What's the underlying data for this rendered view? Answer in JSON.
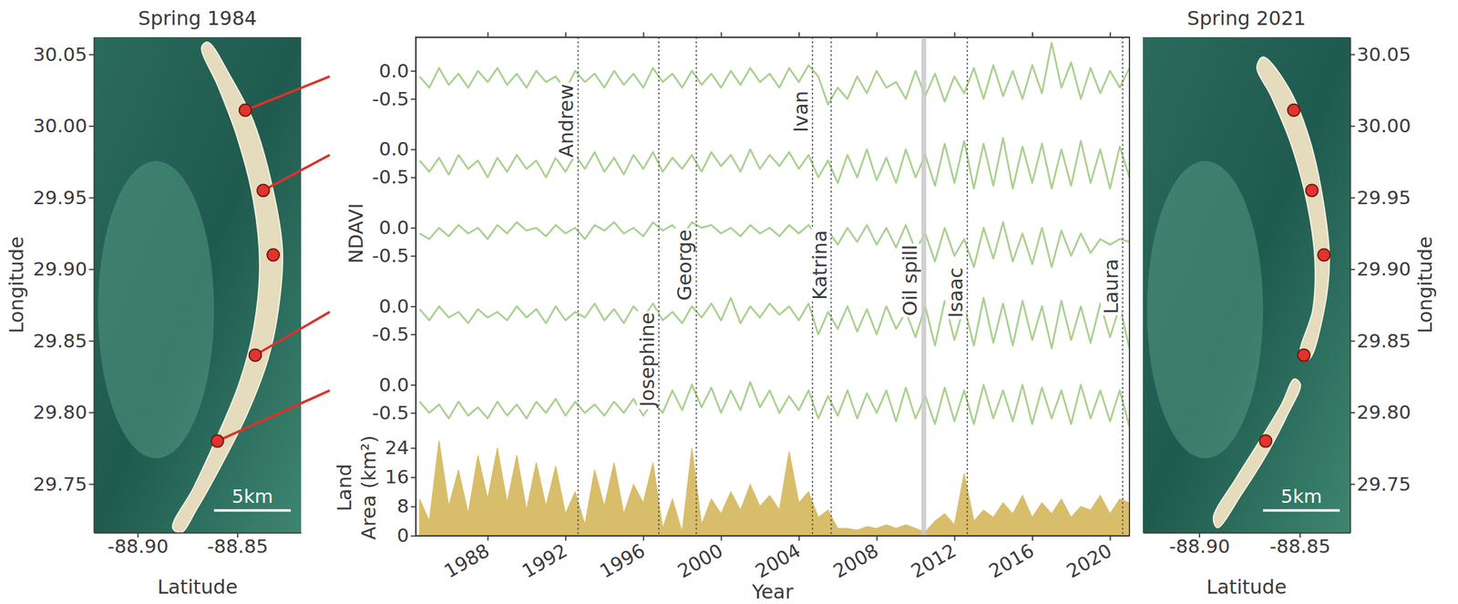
{
  "chart_data": [
    {
      "type": "scatter",
      "title": "Spring 1984",
      "x_label": "Latitude",
      "y_label": "Longitude",
      "x": [
        -88.846,
        -88.837,
        -88.832,
        -88.841,
        -88.86
      ],
      "values": [
        30.011,
        29.955,
        29.91,
        29.84,
        29.78
      ],
      "color": "#e2332c",
      "marker": "circle",
      "xlim": [
        -88.922,
        -88.818
      ],
      "ylim": [
        29.716,
        30.062
      ],
      "xticks": [
        {
          "value": -88.9,
          "label": "-88.90"
        },
        -88.85
      ],
      "yticks": [
        29.75,
        {
          "value": 29.8,
          "label": "29.80"
        },
        29.85,
        {
          "value": 29.9,
          "label": "29.90"
        },
        29.95,
        {
          "value": 30,
          "label": "30.00"
        },
        30.05
      ],
      "annotations": [
        "5km"
      ]
    },
    {
      "type": "line",
      "color": "#a9d18e",
      "tick_labels": "y",
      "x": [
        1984.5,
        1985,
        1985.5,
        1986,
        1986.5,
        1987,
        1987.5,
        1988,
        1988.5,
        1989,
        1989.5,
        1990,
        1990.5,
        1991,
        1991.5,
        1992,
        1992.5,
        1993,
        1993.5,
        1994,
        1994.5,
        1995,
        1995.5,
        1996,
        1996.5,
        1997,
        1997.5,
        1998,
        1998.5,
        1999,
        1999.5,
        2000,
        2000.5,
        2001,
        2001.5,
        2002,
        2002.5,
        2003,
        2003.5,
        2004,
        2004.5,
        2005,
        2005.5,
        2006,
        2006.5,
        2007,
        2007.5,
        2008,
        2008.5,
        2009,
        2009.5,
        2010,
        2010.5,
        2011,
        2011.5,
        2012,
        2012.5,
        2013,
        2013.5,
        2014,
        2014.5,
        2015,
        2015.5,
        2016,
        2016.5,
        2017,
        2017.5,
        2018,
        2018.5,
        2019,
        2019.5,
        2020,
        2020.5,
        2021
      ],
      "values": [
        -0.1,
        -0.3,
        0.05,
        -0.25,
        -0.05,
        -0.3,
        0,
        -0.2,
        0.05,
        -0.25,
        -0.05,
        -0.3,
        0,
        -0.2,
        -0.1,
        -0.35,
        0,
        -0.2,
        -0.05,
        -0.3,
        0,
        -0.25,
        -0.05,
        -0.3,
        0.05,
        -0.2,
        -0.05,
        -0.3,
        0,
        -0.25,
        -0.05,
        -0.3,
        0,
        -0.25,
        0.05,
        -0.2,
        -0.05,
        -0.3,
        0.05,
        -0.2,
        0.1,
        -0.1,
        -0.6,
        -0.3,
        -0.5,
        -0.1,
        -0.4,
        0,
        -0.3,
        -0.2,
        -0.5,
        0,
        -0.45,
        -0.05,
        -0.55,
        -0.1,
        -0.4,
        0.05,
        -0.5,
        0.1,
        -0.45,
        0,
        -0.5,
        0.1,
        -0.4,
        0.5,
        -0.3,
        0.15,
        -0.5,
        0.05,
        -0.4,
        0,
        -0.3,
        0.05
      ],
      "xlim": [
        1984.3,
        2021
      ],
      "ylim": [
        -0.8,
        0.6
      ],
      "xticks": [
        1988,
        1992,
        1996,
        2000,
        2004,
        2008,
        2012,
        2016,
        2020
      ],
      "yticks": [
        -0.5,
        {
          "value": 0,
          "label": "0.0"
        }
      ],
      "annotations": [
        {
          "label": "Andrew",
          "x": 1992.65
        },
        {
          "label": "Ivan",
          "x": 2004.7
        },
        {
          "label": "Josephine",
          "x": 1996.8
        },
        {
          "label": "George",
          "x": 1998.73
        },
        {
          "label": "Katrina",
          "x": 2005.66
        },
        {
          "label": "Oil spill",
          "range": [
            2010.3,
            2010.55
          ]
        },
        {
          "label": "Isaac",
          "x": 2012.66
        },
        {
          "label": "Laura",
          "x": 2020.65
        }
      ]
    },
    {
      "type": "line",
      "color": "#a9d18e",
      "tick_labels": "y",
      "x": [
        1984.5,
        1985,
        1985.5,
        1986,
        1986.5,
        1987,
        1987.5,
        1988,
        1988.5,
        1989,
        1989.5,
        1990,
        1990.5,
        1991,
        1991.5,
        1992,
        1992.5,
        1993,
        1993.5,
        1994,
        1994.5,
        1995,
        1995.5,
        1996,
        1996.5,
        1997,
        1997.5,
        1998,
        1998.5,
        1999,
        1999.5,
        2000,
        2000.5,
        2001,
        2001.5,
        2002,
        2002.5,
        2003,
        2003.5,
        2004,
        2004.5,
        2005,
        2005.5,
        2006,
        2006.5,
        2007,
        2007.5,
        2008,
        2008.5,
        2009,
        2009.5,
        2010,
        2010.5,
        2011,
        2011.5,
        2012,
        2012.5,
        2013,
        2013.5,
        2014,
        2014.5,
        2015,
        2015.5,
        2016,
        2016.5,
        2017,
        2017.5,
        2018,
        2018.5,
        2019,
        2019.5,
        2020,
        2020.5,
        2021
      ],
      "values": [
        -0.2,
        -0.4,
        -0.15,
        -0.45,
        -0.1,
        -0.35,
        -0.2,
        -0.5,
        -0.15,
        -0.4,
        -0.1,
        -0.35,
        -0.2,
        -0.5,
        -0.15,
        -0.4,
        -0.1,
        -0.35,
        -0.05,
        -0.4,
        -0.15,
        -0.45,
        -0.1,
        -0.35,
        -0.05,
        -0.4,
        -0.15,
        -0.35,
        -0.1,
        -0.4,
        -0.05,
        -0.3,
        -0.1,
        -0.4,
        0,
        -0.35,
        -0.1,
        -0.3,
        -0.05,
        -0.35,
        -0.1,
        -0.5,
        -0.2,
        -0.6,
        -0.1,
        -0.5,
        0,
        -0.55,
        -0.15,
        -0.6,
        0,
        -0.5,
        -0.1,
        -0.65,
        0.1,
        -0.6,
        0.15,
        -0.7,
        0.1,
        -0.65,
        0.2,
        -0.7,
        0.05,
        -0.6,
        0.1,
        -0.7,
        0,
        -0.65,
        0.15,
        -0.6,
        0,
        -0.7,
        0.05,
        -0.5
      ],
      "xlim": [
        1984.3,
        2021
      ],
      "ylim": [
        -0.8,
        0.6
      ],
      "yticks": [
        -0.5,
        {
          "value": 0,
          "label": "0.0"
        }
      ]
    },
    {
      "type": "line",
      "color": "#a9d18e",
      "tick_labels": "y",
      "y_label": "NDAVI",
      "x": [
        1984.5,
        1985,
        1985.5,
        1986,
        1986.5,
        1987,
        1987.5,
        1988,
        1988.5,
        1989,
        1989.5,
        1990,
        1990.5,
        1991,
        1991.5,
        1992,
        1992.5,
        1993,
        1993.5,
        1994,
        1994.5,
        1995,
        1995.5,
        1996,
        1996.5,
        1997,
        1997.5,
        1998,
        1998.5,
        1999,
        1999.5,
        2000,
        2000.5,
        2001,
        2001.5,
        2002,
        2002.5,
        2003,
        2003.5,
        2004,
        2004.5,
        2005,
        2005.5,
        2006,
        2006.5,
        2007,
        2007.5,
        2008,
        2008.5,
        2009,
        2009.5,
        2010,
        2010.5,
        2011,
        2011.5,
        2012,
        2012.5,
        2013,
        2013.5,
        2014,
        2014.5,
        2015,
        2015.5,
        2016,
        2016.5,
        2017,
        2017.5,
        2018,
        2018.5,
        2019,
        2019.5,
        2020,
        2020.5,
        2021
      ],
      "values": [
        -0.1,
        -0.2,
        0,
        -0.15,
        0.05,
        -0.1,
        0,
        -0.2,
        0.05,
        -0.1,
        0.1,
        -0.05,
        0,
        -0.15,
        0.05,
        -0.1,
        0,
        -0.2,
        0.05,
        -0.05,
        0.1,
        -0.1,
        0,
        -0.15,
        0.1,
        -0.05,
        0.05,
        -0.15,
        0.1,
        0,
        0.05,
        -0.1,
        0,
        -0.15,
        0.05,
        -0.1,
        0,
        -0.15,
        0.05,
        -0.1,
        0.05,
        -0.2,
        -0.05,
        -0.3,
        0,
        -0.25,
        0.05,
        -0.3,
        0,
        -0.35,
        0.05,
        -0.4,
        -0.1,
        -0.6,
        0,
        -0.5,
        -0.2,
        -0.7,
        0,
        -0.55,
        0.1,
        -0.6,
        -0.1,
        -0.65,
        0,
        -0.7,
        -0.05,
        -0.5,
        -0.1,
        -0.45,
        -0.2,
        -0.3,
        -0.2,
        -0.25
      ],
      "xlim": [
        1984.3,
        2021
      ],
      "ylim": [
        -0.8,
        0.6
      ],
      "yticks": [
        -0.5,
        {
          "value": 0,
          "label": "0.0"
        }
      ]
    },
    {
      "type": "line",
      "color": "#a9d18e",
      "tick_labels": "y",
      "x": [
        1984.5,
        1985,
        1985.5,
        1986,
        1986.5,
        1987,
        1987.5,
        1988,
        1988.5,
        1989,
        1989.5,
        1990,
        1990.5,
        1991,
        1991.5,
        1992,
        1992.5,
        1993,
        1993.5,
        1994,
        1994.5,
        1995,
        1995.5,
        1996,
        1996.5,
        1997,
        1997.5,
        1998,
        1998.5,
        1999,
        1999.5,
        2000,
        2000.5,
        2001,
        2001.5,
        2002,
        2002.5,
        2003,
        2003.5,
        2004,
        2004.5,
        2005,
        2005.5,
        2006,
        2006.5,
        2007,
        2007.5,
        2008,
        2008.5,
        2009,
        2009.5,
        2010,
        2010.5,
        2011,
        2011.5,
        2012,
        2012.5,
        2013,
        2013.5,
        2014,
        2014.5,
        2015,
        2015.5,
        2016,
        2016.5,
        2017,
        2017.5,
        2018,
        2018.5,
        2019,
        2019.5,
        2020,
        2020.5,
        2021
      ],
      "values": [
        -0.05,
        -0.25,
        0,
        -0.2,
        -0.1,
        -0.3,
        -0.05,
        -0.2,
        -0.1,
        -0.25,
        0,
        -0.2,
        -0.05,
        -0.3,
        0,
        -0.25,
        -0.1,
        -0.2,
        0.05,
        -0.25,
        -0.05,
        -0.3,
        0,
        -0.2,
        0.05,
        -0.25,
        -0.1,
        -0.3,
        0,
        -0.2,
        0.05,
        -0.25,
        0.15,
        -0.3,
        0,
        -0.2,
        0.05,
        -0.15,
        0,
        -0.25,
        0.05,
        -0.5,
        -0.1,
        -0.4,
        0,
        -0.45,
        -0.05,
        -0.5,
        0,
        -0.4,
        -0.1,
        -0.55,
        0,
        -0.7,
        0.1,
        -0.6,
        0,
        -0.7,
        0.15,
        -0.65,
        0.05,
        -0.7,
        0.1,
        -0.6,
        0,
        -0.75,
        0.1,
        -0.6,
        0,
        -0.65,
        0.05,
        -0.55,
        0,
        -0.75
      ],
      "xlim": [
        1984.3,
        2021
      ],
      "ylim": [
        -0.8,
        0.6
      ],
      "yticks": [
        -0.5,
        {
          "value": 0,
          "label": "0.0"
        }
      ]
    },
    {
      "type": "line",
      "color": "#a9d18e",
      "tick_labels": "y",
      "x": [
        1984.5,
        1985,
        1985.5,
        1986,
        1986.5,
        1987,
        1987.5,
        1988,
        1988.5,
        1989,
        1989.5,
        1990,
        1990.5,
        1991,
        1991.5,
        1992,
        1992.5,
        1993,
        1993.5,
        1994,
        1994.5,
        1995,
        1995.5,
        1996,
        1996.5,
        1997,
        1997.5,
        1998,
        1998.5,
        1999,
        1999.5,
        2000,
        2000.5,
        2001,
        2001.5,
        2002,
        2002.5,
        2003,
        2003.5,
        2004,
        2004.5,
        2005,
        2005.5,
        2006,
        2006.5,
        2007,
        2007.5,
        2008,
        2008.5,
        2009,
        2009.5,
        2010,
        2010.5,
        2011,
        2011.5,
        2012,
        2012.5,
        2013,
        2013.5,
        2014,
        2014.5,
        2015,
        2015.5,
        2016,
        2016.5,
        2017,
        2017.5,
        2018,
        2018.5,
        2019,
        2019.5,
        2020,
        2020.5,
        2021
      ],
      "values": [
        -0.3,
        -0.5,
        -0.35,
        -0.6,
        -0.3,
        -0.55,
        -0.4,
        -0.6,
        -0.3,
        -0.55,
        -0.35,
        -0.6,
        -0.3,
        -0.5,
        -0.25,
        -0.55,
        -0.3,
        -0.5,
        -0.35,
        -0.55,
        -0.3,
        -0.5,
        -0.25,
        -0.55,
        -0.3,
        -0.5,
        -0.1,
        -0.45,
        0,
        -0.4,
        -0.05,
        -0.5,
        -0.1,
        -0.45,
        0.05,
        -0.4,
        -0.1,
        -0.5,
        -0.2,
        -0.45,
        -0.1,
        -0.6,
        -0.2,
        -0.55,
        -0.1,
        -0.6,
        -0.15,
        -0.5,
        -0.1,
        -0.65,
        -0.05,
        -0.6,
        -0.2,
        -0.7,
        -0.05,
        -0.65,
        -0.1,
        -0.7,
        0,
        -0.6,
        -0.1,
        -0.65,
        0,
        -0.7,
        -0.05,
        -0.6,
        -0.1,
        -0.7,
        0,
        -0.6,
        -0.1,
        -0.65,
        -0.1,
        -0.75
      ],
      "xlim": [
        1984.3,
        2021
      ],
      "ylim": [
        -0.8,
        0.6
      ],
      "yticks": [
        -0.5,
        {
          "value": 0,
          "label": "0.0"
        }
      ]
    },
    {
      "type": "area",
      "color": "#d8bd6a",
      "x_label": "Year",
      "y_label": "Land Area (km²)",
      "x": [
        1984.5,
        1985,
        1985.5,
        1986,
        1986.5,
        1987,
        1987.5,
        1988,
        1988.5,
        1989,
        1989.5,
        1990,
        1990.5,
        1991,
        1991.5,
        1992,
        1992.5,
        1993,
        1993.5,
        1994,
        1994.5,
        1995,
        1995.5,
        1996,
        1996.5,
        1997,
        1997.5,
        1998,
        1998.5,
        1999,
        1999.5,
        2000,
        2000.5,
        2001,
        2001.5,
        2002,
        2002.5,
        2003,
        2003.5,
        2004,
        2004.5,
        2005,
        2005.5,
        2006,
        2006.5,
        2007,
        2007.5,
        2008,
        2008.5,
        2009,
        2009.5,
        2010,
        2010.5,
        2011,
        2011.5,
        2012,
        2012.5,
        2013,
        2013.5,
        2014,
        2014.5,
        2015,
        2015.5,
        2016,
        2016.5,
        2017,
        2017.5,
        2018,
        2018.5,
        2019,
        2019.5,
        2020,
        2020.5,
        2021
      ],
      "values": [
        10,
        4,
        26,
        8,
        18,
        6,
        22,
        10,
        24,
        9,
        22,
        7,
        20,
        8,
        19,
        6,
        12,
        3,
        18,
        8,
        20,
        6,
        14,
        9,
        20,
        2,
        10,
        1,
        24,
        3,
        10,
        6,
        12,
        7,
        14,
        8,
        11,
        7,
        23,
        9,
        12,
        5,
        7,
        2,
        2,
        1.5,
        2.5,
        2,
        3,
        2,
        3,
        2,
        1,
        4,
        6,
        3,
        17,
        4,
        7,
        5,
        9,
        6,
        11,
        5,
        9,
        6,
        10,
        5,
        8,
        7,
        11,
        6,
        10,
        9
      ],
      "xlim": [
        1984.3,
        2021
      ],
      "ylim": [
        0,
        29
      ],
      "xticks": [
        1988,
        1992,
        1996,
        2000,
        2004,
        2008,
        2012,
        2016,
        2020
      ],
      "yticks": [
        0,
        8,
        16,
        24
      ]
    },
    {
      "type": "scatter",
      "title": "Spring 2021",
      "x_label": "Latitude",
      "y_label": "Longitude",
      "x": [
        -88.853,
        -88.844,
        -88.838,
        -88.848,
        -88.867
      ],
      "values": [
        30.011,
        29.955,
        29.91,
        29.84,
        29.78
      ],
      "color": "#e2332c",
      "marker": "circle",
      "xlim": [
        -88.928,
        -88.825
      ],
      "ylim": [
        29.716,
        30.062
      ],
      "xticks": [
        {
          "value": -88.9,
          "label": "-88.90"
        },
        -88.85
      ],
      "yticks": [
        29.75,
        {
          "value": 29.8,
          "label": "29.80"
        },
        29.85,
        {
          "value": 29.9,
          "label": "29.90"
        },
        29.95,
        {
          "value": 30,
          "label": "30.00"
        },
        30.05
      ],
      "annotations": [
        "5km"
      ]
    }
  ]
}
